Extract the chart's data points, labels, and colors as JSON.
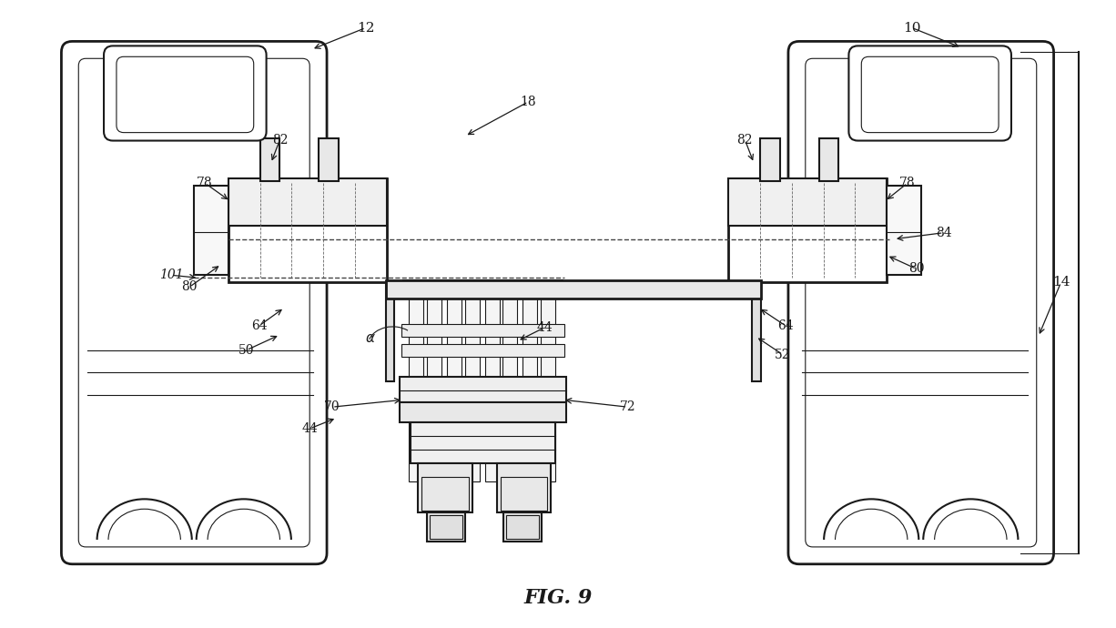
{
  "title": "FIG. 9",
  "bg_color": "#ffffff",
  "line_color": "#1a1a1a",
  "label_color": "#1a1a1a",
  "fig_width": 12.26,
  "fig_height": 6.9
}
